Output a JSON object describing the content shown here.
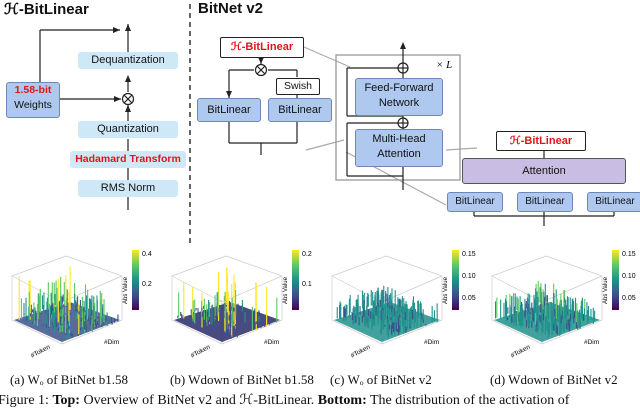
{
  "left_panel": {
    "title": "ℋ-BitLinear",
    "dequantization": "Dequantization",
    "weights_line1": "1.58-bit",
    "weights_line2": "Weights",
    "quantization": "Quantization",
    "hadamard": "Hadamard Transform",
    "rms_norm": "RMS Norm"
  },
  "center_panel": {
    "title": "BitNet v2",
    "h_bitlinear": "ℋ-BitLinear",
    "swish": "Swish",
    "bitlinear_left": "BitLinear",
    "bitlinear_right": "BitLinear",
    "block_ffn_line1": "Feed-Forward",
    "block_ffn_line2": "Network",
    "block_attn_line1": "Multi-Head",
    "block_attn_line2": "Attention",
    "repeat": "× L"
  },
  "right_panel": {
    "h_bitlinear": "ℋ-BitLinear",
    "attention": "Attention",
    "bitlinear_1": "BitLinear",
    "bitlinear_2": "BitLinear",
    "bitlinear_3": "BitLinear"
  },
  "plots": [
    {
      "caption": "(a) Wₒ of BitNet b1.58",
      "cbar_label": "Abs Value",
      "ticks": [
        "0.4",
        "0.2"
      ],
      "xlabel": "#Token",
      "ylabel": "#Dim"
    },
    {
      "caption": "(b) Wdown of BitNet b1.58",
      "cbar_label": "Abs Value",
      "ticks": [
        "0.2",
        "0.1"
      ],
      "xlabel": "#Token",
      "ylabel": "#Dim"
    },
    {
      "caption": "(c) Wₒ of BitNet v2",
      "cbar_label": "Abs Value",
      "ticks": [
        "0.15",
        "0.10",
        "0.05"
      ],
      "xlabel": "#Token",
      "ylabel": "#Dim"
    },
    {
      "caption": "(d) Wdown of BitNet v2",
      "cbar_label": "Abs Value",
      "ticks": [
        "0.15",
        "0.10",
        "0.05"
      ],
      "xlabel": "#Token",
      "ylabel": "#Dim"
    }
  ],
  "figure_caption": {
    "prefix": "Figure 1: ",
    "top_label": "Top:",
    "top_text": " Overview of BitNet v2 and ℋ-BitLinear. ",
    "bottom_label": "Bottom:",
    "bottom_text": " The distribution of the activation of"
  },
  "colors": {
    "box": "#cfe8f7",
    "purple_box": "#aec8ef",
    "red": "#e0151b",
    "attention": "#c9bde4"
  }
}
